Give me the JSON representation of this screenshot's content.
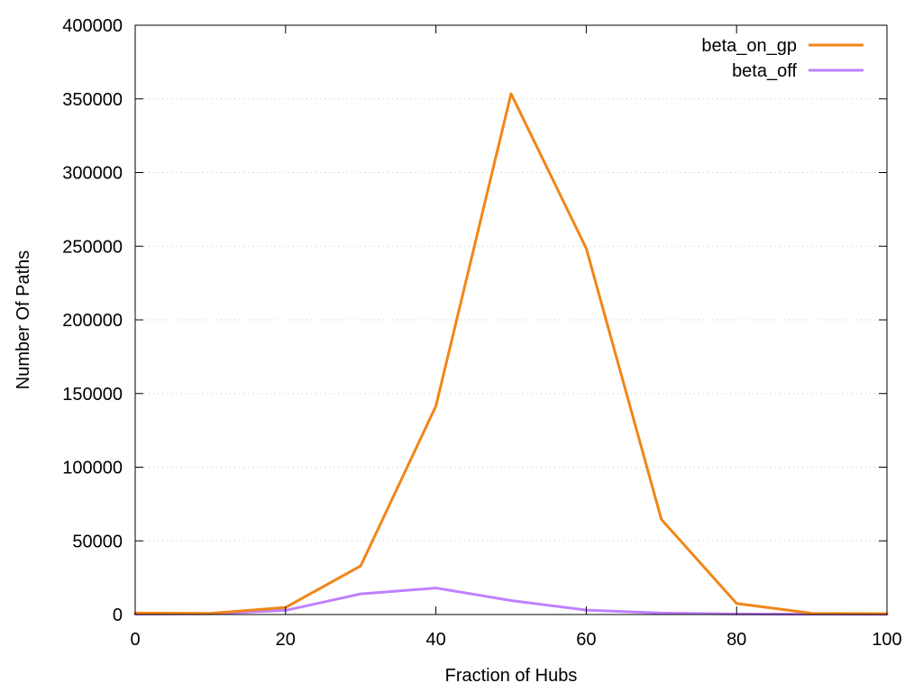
{
  "chart_data": {
    "type": "line",
    "title": "",
    "xlabel": "Fraction of Hubs",
    "ylabel": "Number Of Paths",
    "xlim": [
      0,
      100
    ],
    "ylim": [
      0,
      400000
    ],
    "xticks": [
      "0",
      "20",
      "40",
      "60",
      "80",
      "100"
    ],
    "yticks": [
      "0",
      "50000",
      "100000",
      "150000",
      "200000",
      "250000",
      "300000",
      "350000",
      "400000"
    ],
    "grid": "horizontal-dotted",
    "legend_position": "top-right",
    "x": [
      0,
      10,
      20,
      30,
      40,
      50,
      60,
      70,
      80,
      90,
      100
    ],
    "series": [
      {
        "name": "beta_on_gp",
        "color": "#f28518",
        "values": [
          1000,
          800,
          4800,
          33000,
          141500,
          353500,
          248500,
          64500,
          7500,
          800,
          500
        ]
      },
      {
        "name": "beta_off",
        "color": "#c080ff",
        "values": [
          300,
          500,
          2800,
          14000,
          18000,
          9500,
          3000,
          1000,
          400,
          200,
          100
        ]
      }
    ]
  }
}
